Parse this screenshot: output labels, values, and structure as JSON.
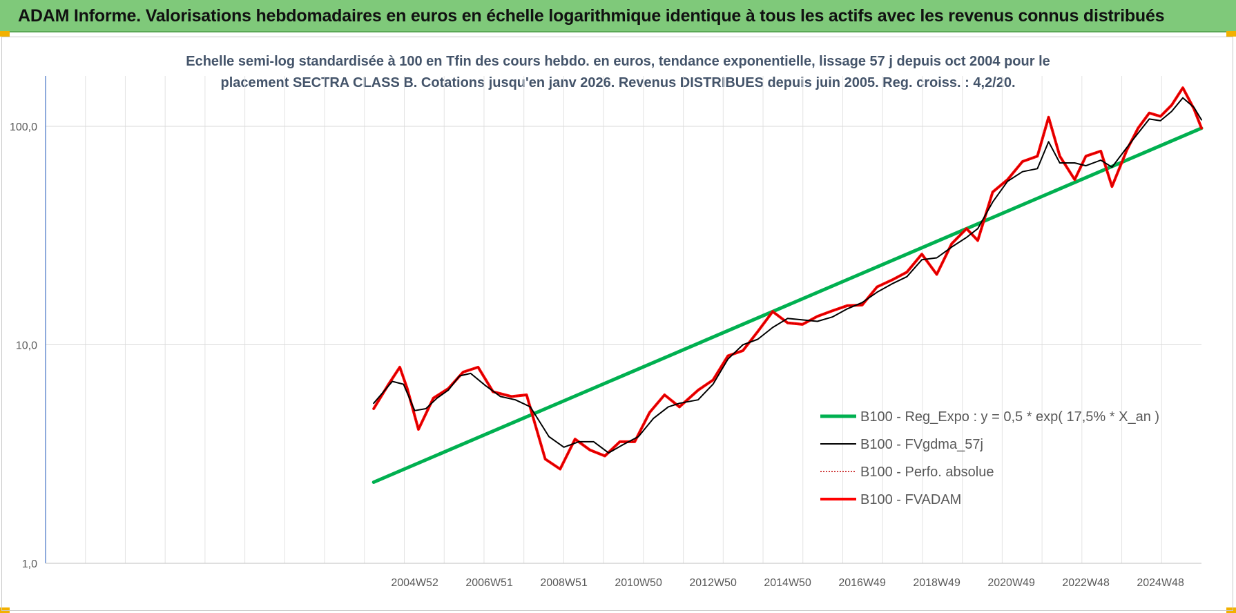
{
  "header": {
    "banner_title": "ADAM Informe. Valorisations hebdomadaires en euros en échelle logarithmique identique à tous les actifs avec les revenus connus distribués"
  },
  "chart_data": {
    "type": "line",
    "title": "Echelle semi-log standardisée à 100 en Tfin des cours hebdo. en euros, tendance exponentielle, lissage 57 j depuis oct 2004 pour le placement SECTRA CLASS B. Cotations jusqu'en janv 2026. Revenus DISTRIBUES depuis juin 2005. Reg. croiss. : 4,2/20.",
    "title_lines": [
      "Echelle semi-log standardisée à 100 en Tfin des cours hebdo. en euros, tendance exponentielle, lissage 57 j depuis oct 2004 pour le",
      "placement SECTRA CLASS B. Cotations jusqu'en janv 2026. Revenus DISTRIBUES depuis juin 2005. Reg. croiss. : 4,2/20."
    ],
    "y_scale": "log",
    "ylim": [
      1,
      170
    ],
    "xlim": [
      1995.0,
      2026.0
    ],
    "y_ticks": [
      {
        "value": 1,
        "label": "1,0"
      },
      {
        "value": 10,
        "label": "10,0"
      },
      {
        "value": 100,
        "label": "100,0"
      }
    ],
    "x_ticks": [
      {
        "value": 2004.9,
        "label": "2004W52"
      },
      {
        "value": 2006.9,
        "label": "2006W51"
      },
      {
        "value": 2008.9,
        "label": "2008W51"
      },
      {
        "value": 2010.9,
        "label": "2010W50"
      },
      {
        "value": 2012.9,
        "label": "2012W50"
      },
      {
        "value": 2014.9,
        "label": "2014W50"
      },
      {
        "value": 2016.9,
        "label": "2016W49"
      },
      {
        "value": 2018.9,
        "label": "2018W49"
      },
      {
        "value": 2020.9,
        "label": "2020W49"
      },
      {
        "value": 2022.9,
        "label": "2022W48"
      },
      {
        "value": 2024.9,
        "label": "2024W48"
      }
    ],
    "grid": "vertical and horizontal, light grey",
    "legend_position": "right, lower middle",
    "colors": {
      "reg_expo": "#00b050",
      "fvgdma": "#000000",
      "perfo": "#c00000",
      "fvadam": "#ff0000",
      "axis_text": "#595959",
      "subtitle": "#44546a",
      "banner": "#7fc97a"
    },
    "series": [
      {
        "name": "B100 - Reg_Expo : y = 0,5 * exp( 17,5% *  X_an )",
        "key": "reg_expo",
        "style": "thick-solid",
        "x": [
          2003.8,
          2026.0
        ],
        "y": [
          2.35,
          98.0
        ]
      },
      {
        "name": "B100 - FVgdma_57j",
        "key": "fvgdma",
        "style": "solid",
        "x": [
          2003.8,
          2004.3,
          2004.6,
          2004.9,
          2005.2,
          2005.5,
          2005.8,
          2006.1,
          2006.4,
          2006.8,
          2007.2,
          2007.6,
          2008.0,
          2008.5,
          2008.9,
          2009.3,
          2009.7,
          2010.1,
          2010.5,
          2010.9,
          2011.3,
          2011.7,
          2012.0,
          2012.5,
          2012.9,
          2013.3,
          2013.7,
          2014.1,
          2014.5,
          2014.9,
          2015.3,
          2015.7,
          2016.1,
          2016.5,
          2016.9,
          2017.3,
          2017.7,
          2018.1,
          2018.5,
          2018.9,
          2019.3,
          2019.7,
          2020.0,
          2020.4,
          2020.8,
          2021.2,
          2021.6,
          2021.9,
          2022.2,
          2022.6,
          2022.9,
          2023.3,
          2023.6,
          2024.0,
          2024.3,
          2024.6,
          2024.9,
          2025.2,
          2025.5,
          2025.8,
          2026.0
        ],
        "y": [
          5.4,
          6.8,
          6.6,
          5.0,
          5.1,
          5.7,
          6.2,
          7.2,
          7.4,
          6.5,
          5.8,
          5.6,
          5.2,
          3.8,
          3.4,
          3.6,
          3.6,
          3.2,
          3.5,
          3.8,
          4.6,
          5.2,
          5.4,
          5.6,
          6.6,
          8.6,
          10.0,
          10.6,
          12.0,
          13.2,
          13.0,
          12.8,
          13.4,
          14.6,
          15.6,
          17.4,
          19.0,
          20.5,
          24.5,
          25.0,
          28.0,
          31.0,
          34.0,
          45.0,
          56.0,
          62.0,
          64.0,
          85.0,
          68.0,
          68.0,
          66.0,
          70.0,
          65.0,
          80.0,
          93.0,
          108.0,
          106.0,
          117.0,
          135.0,
          122.0,
          107.0
        ]
      },
      {
        "name": "B100 - Perfo. absolue",
        "key": "perfo",
        "style": "dotted",
        "x": [
          2003.8,
          2004.2,
          2004.5,
          2004.7,
          2005.0,
          2005.4,
          2005.8,
          2006.2,
          2006.6,
          2007.0,
          2007.5,
          2007.9,
          2008.4,
          2008.8,
          2009.2,
          2009.6,
          2010.0,
          2010.4,
          2010.8,
          2011.2,
          2011.6,
          2012.0,
          2012.5,
          2012.9,
          2013.3,
          2013.7,
          2014.1,
          2014.5,
          2014.9,
          2015.3,
          2015.7,
          2016.1,
          2016.5,
          2016.9,
          2017.3,
          2017.7,
          2018.1,
          2018.5,
          2018.9,
          2019.3,
          2019.7,
          2020.0,
          2020.4,
          2020.8,
          2021.2,
          2021.6,
          2021.9,
          2022.2,
          2022.6,
          2022.9,
          2023.3,
          2023.6,
          2024.0,
          2024.3,
          2024.6,
          2024.9,
          2025.2,
          2025.5,
          2025.8,
          2026.0
        ],
        "y": [
          5.1,
          6.6,
          7.9,
          6.3,
          4.1,
          5.7,
          6.3,
          7.5,
          7.9,
          6.1,
          5.8,
          5.9,
          3.0,
          2.7,
          3.7,
          3.3,
          3.1,
          3.6,
          3.6,
          4.9,
          5.9,
          5.2,
          6.2,
          6.9,
          8.9,
          9.4,
          11.5,
          14.2,
          12.6,
          12.4,
          13.5,
          14.3,
          15.1,
          15.2,
          18.4,
          19.8,
          21.5,
          26.0,
          21.0,
          29.0,
          34.0,
          30.0,
          50.0,
          57.0,
          69.0,
          73.0,
          110.0,
          73.0,
          57.0,
          73.0,
          77.0,
          53.0,
          78.0,
          98.0,
          115.0,
          111.0,
          125.0,
          150.0,
          120.0,
          98.0
        ]
      },
      {
        "name": "B100 - FVADAM",
        "key": "fvadam",
        "style": "thick-solid",
        "x": [
          2003.8,
          2004.2,
          2004.5,
          2004.7,
          2005.0,
          2005.4,
          2005.8,
          2006.2,
          2006.6,
          2007.0,
          2007.5,
          2007.9,
          2008.4,
          2008.8,
          2009.2,
          2009.6,
          2010.0,
          2010.4,
          2010.8,
          2011.2,
          2011.6,
          2012.0,
          2012.5,
          2012.9,
          2013.3,
          2013.7,
          2014.1,
          2014.5,
          2014.9,
          2015.3,
          2015.7,
          2016.1,
          2016.5,
          2016.9,
          2017.3,
          2017.7,
          2018.1,
          2018.5,
          2018.9,
          2019.3,
          2019.7,
          2020.0,
          2020.4,
          2020.8,
          2021.2,
          2021.6,
          2021.9,
          2022.2,
          2022.6,
          2022.9,
          2023.3,
          2023.6,
          2024.0,
          2024.3,
          2024.6,
          2024.9,
          2025.2,
          2025.5,
          2025.8,
          2026.0
        ],
        "y": [
          5.1,
          6.6,
          7.9,
          6.3,
          4.1,
          5.7,
          6.3,
          7.5,
          7.9,
          6.1,
          5.8,
          5.9,
          3.0,
          2.7,
          3.7,
          3.3,
          3.1,
          3.6,
          3.6,
          4.9,
          5.9,
          5.2,
          6.2,
          6.9,
          8.9,
          9.4,
          11.5,
          14.2,
          12.6,
          12.4,
          13.5,
          14.3,
          15.1,
          15.2,
          18.4,
          19.8,
          21.5,
          26.0,
          21.0,
          29.0,
          34.0,
          30.0,
          50.0,
          57.0,
          69.0,
          73.0,
          110.0,
          73.0,
          57.0,
          73.0,
          77.0,
          53.0,
          78.0,
          98.0,
          115.0,
          111.0,
          125.0,
          150.0,
          120.0,
          98.0
        ]
      }
    ]
  }
}
